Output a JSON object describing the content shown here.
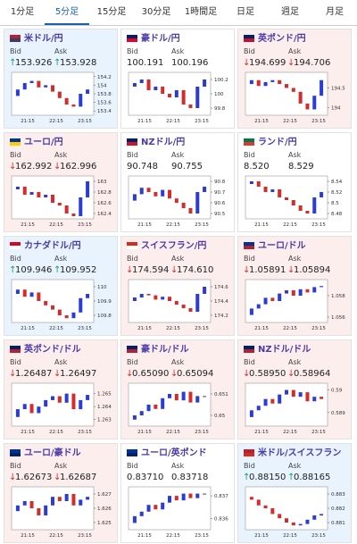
{
  "tabs": [
    "1分足",
    "5分足",
    "15分足",
    "30分足",
    "1時間足",
    "日足",
    "週足",
    "月足"
  ],
  "active_tab": 1,
  "bid_label": "Bid",
  "ask_label": "Ask",
  "tiles": [
    {
      "name": "米ドル/円",
      "trend": "up",
      "arrow": "↑",
      "bid": "153.926",
      "ask": "153.928",
      "flag": [
        "#b22234",
        "#3c3b6e"
      ],
      "ylim": [
        153.3,
        154.3
      ],
      "yticks": [
        154.2,
        154,
        153.8,
        153.6,
        153.4
      ],
      "xticks": [
        "21:15",
        "22:15",
        "23:15"
      ],
      "prices": [
        153.75,
        153.9,
        154.05,
        154.1,
        153.95,
        154.0,
        153.85,
        153.7,
        153.55,
        153.5,
        153.8,
        153.9
      ]
    },
    {
      "name": "豪ドル/円",
      "trend": null,
      "arrow": null,
      "bid": "100.191",
      "ask": "100.196",
      "flag": [
        "#012169",
        "#e4002b"
      ],
      "ylim": [
        99.7,
        100.3
      ],
      "yticks": [
        100.2,
        100,
        99.8
      ],
      "xticks": [
        "21:15",
        "22:15",
        "23:15"
      ],
      "prices": [
        100.1,
        100.15,
        100.2,
        100.05,
        100.1,
        100.0,
        99.95,
        100.05,
        99.85,
        99.8,
        100.1,
        100.2
      ]
    },
    {
      "name": "英ポンド/円",
      "trend": "down",
      "arrow": "↓",
      "bid": "194.699",
      "ask": "194.706",
      "flag": [
        "#012169",
        "#c8102e"
      ],
      "ylim": [
        193.8,
        194.9
      ],
      "yticks": [
        194.5,
        194
      ],
      "xticks": [
        "21:15",
        "22:15",
        "23:15"
      ],
      "prices": [
        194.6,
        194.7,
        194.55,
        194.65,
        194.7,
        194.6,
        194.5,
        194.4,
        194.1,
        193.95,
        194.3,
        194.7
      ]
    },
    {
      "name": "ユーロ/円",
      "trend": "down",
      "arrow": "↓",
      "bid": "162.992",
      "ask": "162.996",
      "flag": [
        "#003399",
        "#ffcc00"
      ],
      "ylim": [
        162.3,
        163.1
      ],
      "yticks": [
        163,
        162.8,
        162.6,
        162.4
      ],
      "xticks": [
        "21:15",
        "22:15",
        "23:15"
      ],
      "prices": [
        162.85,
        162.9,
        162.75,
        162.8,
        162.7,
        162.75,
        162.6,
        162.55,
        162.4,
        162.35,
        162.7,
        163.0
      ]
    },
    {
      "name": "NZドル/円",
      "trend": null,
      "arrow": null,
      "bid": "90.748",
      "ask": "90.755",
      "flag": [
        "#012169",
        "#cc142b"
      ],
      "ylim": [
        90.45,
        90.85
      ],
      "yticks": [
        90.8,
        90.7,
        90.6,
        90.5
      ],
      "xticks": [
        "21:15",
        "22:15",
        "23:15"
      ],
      "prices": [
        90.62,
        90.68,
        90.74,
        90.7,
        90.66,
        90.72,
        90.64,
        90.6,
        90.55,
        90.5,
        90.7,
        90.75
      ]
    },
    {
      "name": "ランド/円",
      "trend": null,
      "arrow": null,
      "bid": "8.520",
      "ask": "8.529",
      "flag": [
        "#007a4d",
        "#de3831"
      ],
      "ylim": [
        8.47,
        8.55
      ],
      "yticks": [
        8.54,
        8.52,
        8.5,
        8.48
      ],
      "xticks": [
        "21:15",
        "22:15",
        "23:15"
      ],
      "prices": [
        8.535,
        8.54,
        8.53,
        8.52,
        8.525,
        8.51,
        8.505,
        8.495,
        8.485,
        8.48,
        8.51,
        8.52
      ]
    },
    {
      "name": "カナダドル/円",
      "trend": "up",
      "arrow": "↑",
      "bid": "109.946",
      "ask": "109.952",
      "flag": [
        "#d80621",
        "#ffffff"
      ],
      "ylim": [
        109.75,
        110.05
      ],
      "yticks": [
        110,
        109.9,
        109.8
      ],
      "xticks": [
        "21:15",
        "22:15",
        "23:15"
      ],
      "prices": [
        109.95,
        109.98,
        109.93,
        109.96,
        109.9,
        109.87,
        109.84,
        109.8,
        109.78,
        109.82,
        109.92,
        109.95
      ]
    },
    {
      "name": "スイスフラン/円",
      "trend": "down",
      "arrow": "↓",
      "bid": "174.594",
      "ask": "174.610",
      "flag": [
        "#d52b1e",
        "#ffffff"
      ],
      "ylim": [
        174.1,
        174.7
      ],
      "yticks": [
        174.6,
        174.4,
        174.2
      ],
      "xticks": [
        "21:15",
        "22:15",
        "23:15"
      ],
      "prices": [
        174.4,
        174.45,
        174.5,
        174.48,
        174.42,
        174.46,
        174.4,
        174.35,
        174.3,
        174.25,
        174.5,
        174.6
      ]
    },
    {
      "name": "ユーロ/ドル",
      "trend": "down",
      "arrow": "↓",
      "bid": "1.05891",
      "ask": "1.05894",
      "flag": [
        "#003399",
        "#b22234"
      ],
      "ylim": [
        1.0555,
        1.0595
      ],
      "yticks": [
        1.058,
        1.056
      ],
      "xticks": [
        "21:15",
        "22:15",
        "23:15"
      ],
      "prices": [
        1.0562,
        1.0568,
        1.0572,
        1.0578,
        1.0575,
        1.0582,
        1.0585,
        1.058,
        1.0586,
        1.0583,
        1.0588,
        1.0589
      ]
    },
    {
      "name": "英ポンド/ドル",
      "trend": "down",
      "arrow": "↓",
      "bid": "1.26487",
      "ask": "1.26497",
      "flag": [
        "#012169",
        "#b22234"
      ],
      "ylim": [
        1.2625,
        1.2658
      ],
      "yticks": [
        1.265,
        1.264,
        1.263
      ],
      "xticks": [
        "21:15",
        "22:15",
        "23:15"
      ],
      "prices": [
        1.2632,
        1.2638,
        1.2642,
        1.2635,
        1.264,
        1.2645,
        1.2648,
        1.2643,
        1.265,
        1.2638,
        1.2645,
        1.2649
      ]
    },
    {
      "name": "豪ドル/ドル",
      "trend": "down",
      "arrow": "↓",
      "bid": "0.65090",
      "ask": "0.65094",
      "flag": [
        "#012169",
        "#b22234"
      ],
      "ylim": [
        0.6495,
        0.6515
      ],
      "yticks": [
        0.651,
        0.65
      ],
      "xticks": [
        "21:15",
        "22:15",
        "23:15"
      ],
      "prices": [
        0.6498,
        0.65,
        0.6502,
        0.6505,
        0.6503,
        0.6508,
        0.651,
        0.6507,
        0.6511,
        0.6506,
        0.6509,
        0.6509
      ]
    },
    {
      "name": "NZドル/ドル",
      "trend": "down",
      "arrow": "↓",
      "bid": "0.58950",
      "ask": "0.58964",
      "flag": [
        "#012169",
        "#b22234"
      ],
      "ylim": [
        0.5884,
        0.5903
      ],
      "yticks": [
        0.59,
        0.589
      ],
      "xticks": [
        "21:15",
        "22:15",
        "23:15"
      ],
      "prices": [
        0.5888,
        0.5891,
        0.5893,
        0.5896,
        0.5894,
        0.5898,
        0.59,
        0.5897,
        0.5899,
        0.5895,
        0.5897,
        0.5896
      ]
    },
    {
      "name": "ユーロ/豪ドル",
      "trend": "down",
      "arrow": "↓",
      "bid": "1.62673",
      "ask": "1.62687",
      "flag": [
        "#003399",
        "#012169"
      ],
      "ylim": [
        1.6245,
        1.6275
      ],
      "yticks": [
        1.627,
        1.626,
        1.625
      ],
      "xticks": [
        "21:15",
        "22:15",
        "23:15"
      ],
      "prices": [
        1.6258,
        1.6262,
        1.6265,
        1.626,
        1.6255,
        1.6262,
        1.6268,
        1.6265,
        1.627,
        1.6262,
        1.6266,
        1.6268
      ]
    },
    {
      "name": "ユーロ/英ポンド",
      "trend": null,
      "arrow": null,
      "bid": "0.83710",
      "ask": "0.83718",
      "flag": [
        "#003399",
        "#012169"
      ],
      "ylim": [
        0.8355,
        0.8374
      ],
      "yticks": [
        0.837,
        0.836
      ],
      "xticks": [
        "21:15",
        "22:15",
        "23:15"
      ],
      "prices": [
        0.8358,
        0.8361,
        0.8363,
        0.8366,
        0.8364,
        0.8367,
        0.837,
        0.8368,
        0.8371,
        0.8369,
        0.8371,
        0.8371
      ]
    },
    {
      "name": "米ドル/スイスフラン",
      "trend": "up",
      "arrow": "↑",
      "bid": "0.88150",
      "ask": "0.88165",
      "flag": [
        "#b22234",
        "#d52b1e"
      ],
      "ylim": [
        0.8805,
        0.8835
      ],
      "yticks": [
        0.883,
        0.882,
        0.881
      ],
      "xticks": [
        "21:15",
        "22:15",
        "23:15"
      ],
      "prices": [
        0.8828,
        0.8826,
        0.8822,
        0.882,
        0.8816,
        0.8813,
        0.881,
        0.8808,
        0.8809,
        0.8812,
        0.8815,
        0.8816
      ]
    }
  ]
}
